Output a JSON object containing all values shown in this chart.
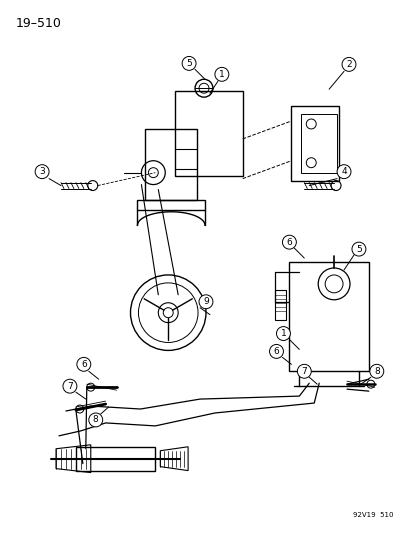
{
  "title": "19–510",
  "watermark": "92V19  510",
  "bg_color": "#ffffff",
  "fg_color": "#000000",
  "figsize": [
    4.06,
    5.33
  ],
  "dpi": 100
}
